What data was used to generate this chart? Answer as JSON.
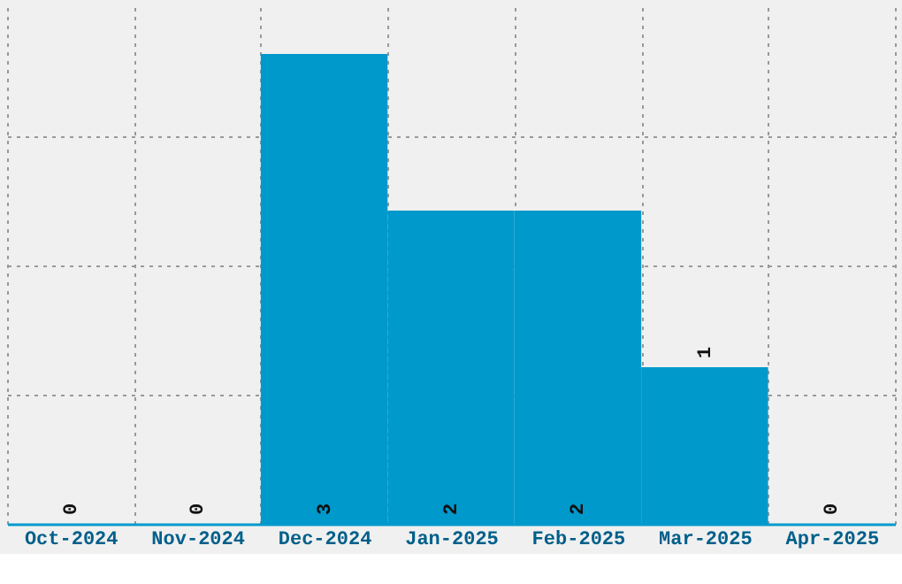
{
  "chart_data": {
    "type": "bar",
    "categories": [
      "Oct-2024",
      "Nov-2024",
      "Dec-2024",
      "Jan-2025",
      "Feb-2025",
      "Mar-2025",
      "Apr-2025"
    ],
    "values": [
      0,
      0,
      3,
      2,
      2,
      1,
      0
    ],
    "color": "#0099cc",
    "ylim": [
      0,
      3.3
    ],
    "yticks": [
      {
        "value": 0.83,
        "label": null
      },
      {
        "value": 1.65,
        "label": null
      },
      {
        "value": 2.48,
        "label": null
      }
    ],
    "tick_labels": "x",
    "grid": true,
    "data_labels": true
  }
}
